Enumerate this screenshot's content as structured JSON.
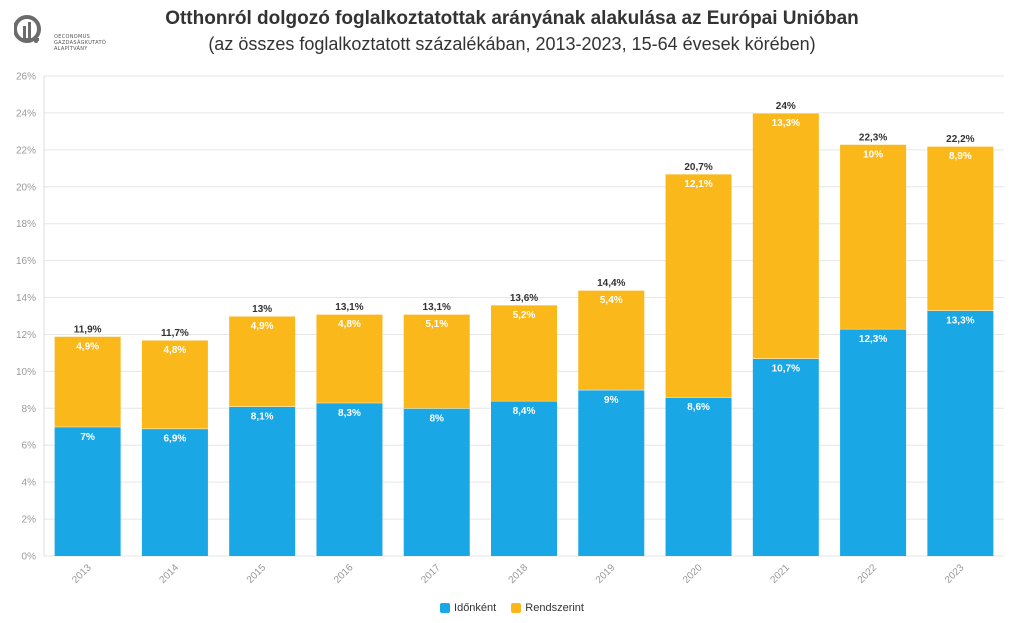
{
  "header": {
    "logo_lines": [
      "OECONOMUS",
      "GAZDASÁGKUTATÓ",
      "ALAPÍTVÁNY"
    ]
  },
  "chart_data": {
    "type": "bar",
    "stacked": true,
    "title": "Otthonról dolgozó foglalkoztatottak arányának alakulása az Európai Unióban",
    "subtitle": "(az összes foglalkoztatott százalékában, 2013-2023, 15-64 évesek körében)",
    "categories": [
      "2013",
      "2014",
      "2015",
      "2016",
      "2017",
      "2018",
      "2019",
      "2020",
      "2021",
      "2022",
      "2023"
    ],
    "series": [
      {
        "name": "Időnként",
        "color": "#1aa7e6",
        "values": [
          7,
          6.9,
          8.1,
          8.3,
          8,
          8.4,
          9,
          8.6,
          10.7,
          12.3,
          13.3
        ],
        "labels": [
          "7%",
          "6,9%",
          "8,1%",
          "8,3%",
          "8%",
          "8,4%",
          "9%",
          "8,6%",
          "10,7%",
          "12,3%",
          "13,3%"
        ]
      },
      {
        "name": "Rendszerint",
        "color": "#fbb81b",
        "values": [
          4.9,
          4.8,
          4.9,
          4.8,
          5.1,
          5.2,
          5.4,
          12.1,
          13.3,
          10,
          8.9
        ],
        "labels": [
          "4,9%",
          "4,8%",
          "4,9%",
          "4,8%",
          "5,1%",
          "5,2%",
          "5,4%",
          "12,1%",
          "13,3%",
          "10%",
          "8,9%"
        ]
      }
    ],
    "totals": [
      11.9,
      11.7,
      13,
      13.1,
      13.1,
      13.6,
      14.4,
      20.7,
      24,
      22.3,
      22.2
    ],
    "total_labels": [
      "11,9%",
      "11,7%",
      "13%",
      "13,1%",
      "13,1%",
      "13,6%",
      "14,4%",
      "20,7%",
      "24%",
      "22,3%",
      "22,2%"
    ],
    "ylim": [
      0,
      26
    ],
    "yticks": [
      0,
      2,
      4,
      6,
      8,
      10,
      12,
      14,
      16,
      18,
      20,
      22,
      24,
      26
    ],
    "ytick_labels": [
      "0%",
      "2%",
      "4%",
      "6%",
      "8%",
      "10%",
      "12%",
      "14%",
      "16%",
      "18%",
      "20%",
      "22%",
      "24%",
      "26%"
    ],
    "xlabel": "",
    "ylabel": "",
    "grid": true,
    "legend_position": "bottom"
  }
}
